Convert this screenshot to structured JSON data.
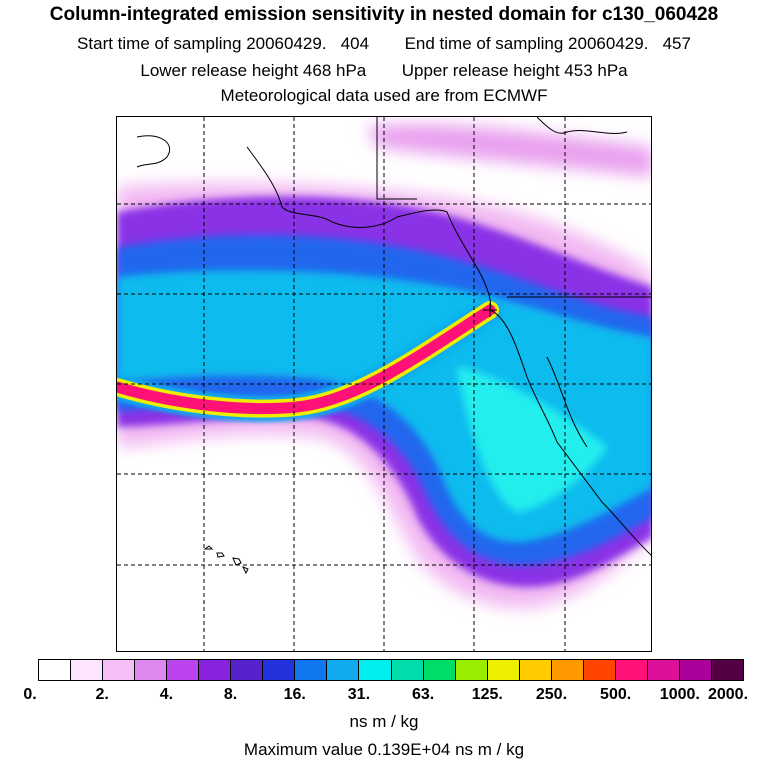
{
  "title": "Column-integrated emission sensitivity in nested domain for c130_060428",
  "sampling": {
    "start_label": "Start time of sampling",
    "start_value": "20060429.   404",
    "end_label": "End time of sampling",
    "end_value": "20060429.   457"
  },
  "release": {
    "lower_label": "Lower release height",
    "lower_value": "468 hPa",
    "upper_label": "Upper release height",
    "upper_value": "453 hPa"
  },
  "met_source": "Meteorological data used are from ECMWF",
  "colorbar": {
    "colors": [
      "#ffffff",
      "#fde6fd",
      "#f7bff7",
      "#dd88ee",
      "#bb44ee",
      "#8822dd",
      "#5522cc",
      "#2233dd",
      "#1177ee",
      "#11aaee",
      "#00eeee",
      "#00ddaa",
      "#00dd66",
      "#99ee00",
      "#eeee00",
      "#ffcc00",
      "#ff9900",
      "#ff4400",
      "#ff1177",
      "#dd1199",
      "#aa0099",
      "#550044"
    ],
    "ticks": [
      "0.",
      "2.",
      "4.",
      "8.",
      "16.",
      "31.",
      "63.",
      "125.",
      "250.",
      "500.",
      "1000.",
      "2000."
    ],
    "units": "ns m / kg"
  },
  "max_value": "Maximum value  0.139E+04 ns m / kg"
}
